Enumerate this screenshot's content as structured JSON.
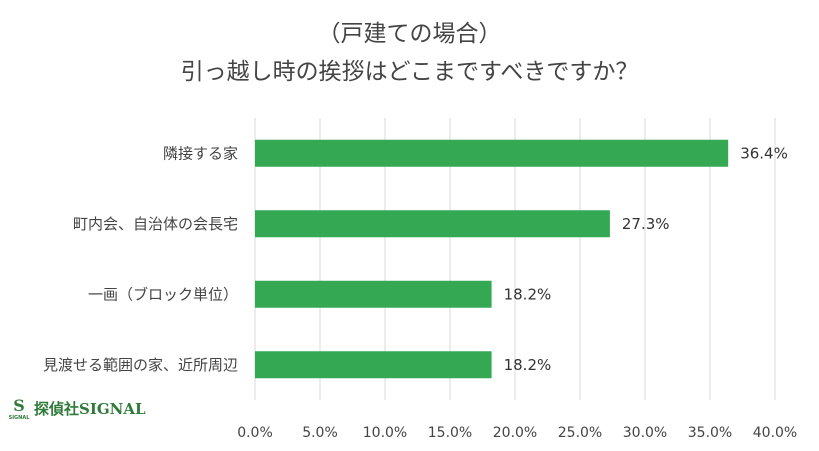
{
  "header": {
    "title_line1": "（戸建ての場合）",
    "title_line2": "引っ越し時の挨拶はどこまですべきですか？"
  },
  "chart_data": {
    "type": "bar",
    "orientation": "horizontal",
    "categories": [
      "隣接する家",
      "町内会、自治体の会長宅",
      "一画（ブロック単位）",
      "見渡せる範囲の家、近所周辺"
    ],
    "values": [
      36.4,
      27.3,
      18.2,
      18.2
    ],
    "value_labels": [
      "36.4%",
      "27.3%",
      "18.2%",
      "18.2%"
    ],
    "xlim": [
      0,
      40
    ],
    "xticks": [
      0,
      5,
      10,
      15,
      20,
      25,
      30,
      35,
      40
    ],
    "xtick_labels": [
      "0.0%",
      "5.0%",
      "10.0%",
      "15.0%",
      "20.0%",
      "25.0%",
      "30.0%",
      "35.0%",
      "40.0%"
    ],
    "grid": "vertical",
    "bar_color": "#34a853",
    "grid_color": "#d9d9d9"
  },
  "logo": {
    "text": "探偵社SIGNAL",
    "mark_letter": "S",
    "mark_sub": "SIGNAL",
    "color": "#2f7a3a"
  }
}
